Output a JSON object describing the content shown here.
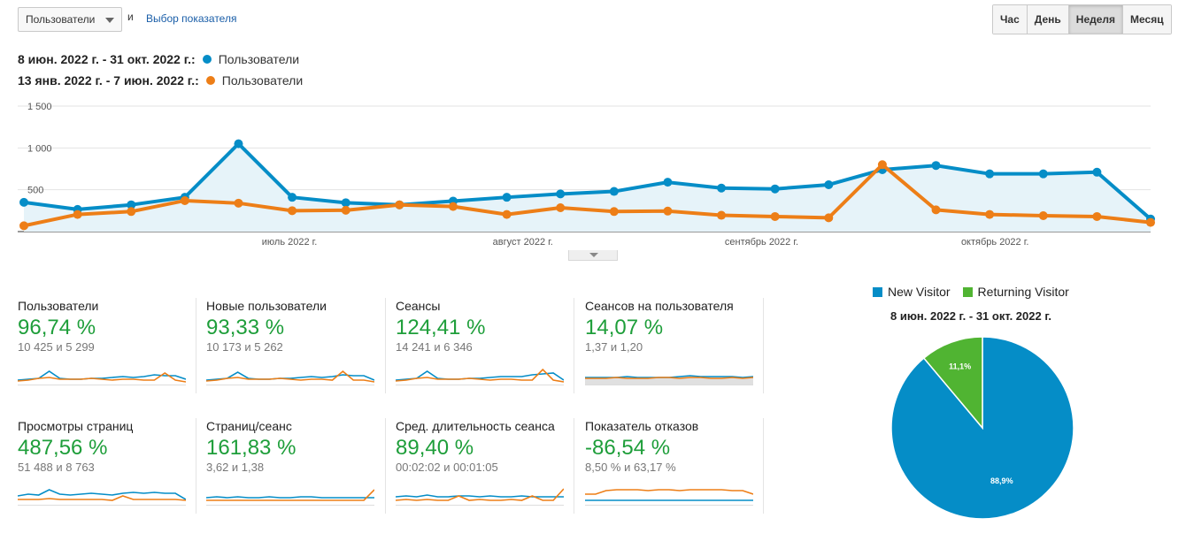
{
  "controls": {
    "metric_select": "Пользователи",
    "and_text": "и",
    "choose_metric": "Выбор показателя",
    "periods": [
      "Час",
      "День",
      "Неделя",
      "Месяц"
    ],
    "active_period": "Неделя"
  },
  "legend": [
    {
      "range": "8 июн. 2022 г. - 31 окт. 2022 г.:",
      "name": "Пользователи",
      "color": "#058dc7"
    },
    {
      "range": "13 янв. 2022 г. - 7 июн. 2022 г.:",
      "name": "Пользователи",
      "color": "#ed7e17"
    }
  ],
  "chart_data": {
    "type": "line",
    "y_ticks": [
      "1 500",
      "1 000",
      "500"
    ],
    "ylim": [
      0,
      1500
    ],
    "x_labels": [
      "июль 2022 г.",
      "август 2022 г.",
      "сентябрь 2022 г.",
      "октябрь 2022 г."
    ],
    "series": [
      {
        "name": "8 июн. 2022 г. - 31 окт. 2022 г.: Пользователи",
        "color": "#058dc7",
        "fill": true,
        "values": [
          350,
          265,
          320,
          410,
          1050,
          410,
          345,
          320,
          365,
          410,
          450,
          480,
          590,
          520,
          510,
          560,
          740,
          790,
          690,
          690,
          710,
          150
        ]
      },
      {
        "name": "13 янв. 2022 г. - 7 июн. 2022 г.: Пользователи",
        "color": "#ed7e17",
        "fill": false,
        "values": [
          70,
          205,
          240,
          370,
          340,
          250,
          255,
          320,
          300,
          205,
          285,
          240,
          245,
          195,
          180,
          165,
          800,
          260,
          205,
          190,
          180,
          110
        ]
      }
    ]
  },
  "tiles": [
    {
      "label": "Пользователи",
      "pct": "96,74 %",
      "vals": "10 425 и 5 299",
      "a": [
        4,
        5,
        6,
        14,
        6,
        5,
        5,
        6,
        6,
        7,
        8,
        7,
        8,
        10,
        9,
        9,
        5
      ],
      "b": [
        3,
        4,
        6,
        7,
        5,
        5,
        5,
        6,
        5,
        4,
        5,
        5,
        4,
        4,
        12,
        4,
        2
      ]
    },
    {
      "label": "Новые пользователи",
      "pct": "93,33 %",
      "vals": "10 173 и 5 262",
      "a": [
        4,
        5,
        6,
        13,
        6,
        5,
        5,
        6,
        6,
        7,
        8,
        7,
        8,
        10,
        9,
        9,
        4
      ],
      "b": [
        3,
        4,
        6,
        7,
        5,
        5,
        5,
        6,
        5,
        4,
        5,
        5,
        4,
        14,
        4,
        4,
        2
      ]
    },
    {
      "label": "Сеансы",
      "pct": "124,41 %",
      "vals": "14 241 и 6 346",
      "a": [
        4,
        5,
        6,
        14,
        6,
        5,
        5,
        6,
        6,
        7,
        8,
        8,
        8,
        10,
        11,
        12,
        4
      ],
      "b": [
        3,
        4,
        6,
        7,
        5,
        5,
        5,
        6,
        5,
        4,
        5,
        5,
        4,
        4,
        16,
        4,
        2
      ]
    },
    {
      "label": "Сеансов на пользователя",
      "pct": "14,07 %",
      "vals": "1,37 и 1,20",
      "fill": true,
      "a": [
        7,
        7,
        7,
        7,
        8,
        7,
        7,
        7,
        7,
        8,
        9,
        8,
        8,
        8,
        8,
        7,
        8
      ],
      "b": [
        6,
        6,
        6,
        7,
        6,
        6,
        6,
        7,
        7,
        6,
        7,
        7,
        6,
        6,
        7,
        6,
        7
      ]
    },
    {
      "label": "Просмотры страниц",
      "pct": "487,56 %",
      "vals": "51 488 и 8 763",
      "a": [
        9,
        11,
        10,
        16,
        11,
        10,
        11,
        12,
        11,
        10,
        12,
        13,
        12,
        13,
        12,
        12,
        5
      ],
      "b": [
        5,
        5,
        5,
        6,
        5,
        5,
        5,
        5,
        5,
        4,
        9,
        5,
        5,
        5,
        5,
        5,
        4
      ]
    },
    {
      "label": "Страниц/сеанс",
      "pct": "161,83 %",
      "vals": "3,62 и 1,38",
      "a": [
        7,
        8,
        7,
        8,
        7,
        7,
        8,
        7,
        7,
        8,
        8,
        7,
        7,
        7,
        7,
        7,
        7
      ],
      "b": [
        4,
        4,
        4,
        4,
        4,
        4,
        4,
        4,
        4,
        4,
        4,
        4,
        4,
        4,
        4,
        4,
        16
      ]
    },
    {
      "label": "Сред. длительность сеанса",
      "pct": "89,40 %",
      "vals": "00:02:02 и 00:01:05",
      "a": [
        8,
        9,
        8,
        10,
        8,
        8,
        9,
        9,
        8,
        9,
        8,
        8,
        9,
        8,
        8,
        8,
        8
      ],
      "b": [
        4,
        5,
        4,
        5,
        4,
        4,
        9,
        4,
        5,
        4,
        4,
        5,
        4,
        9,
        4,
        4,
        17
      ]
    },
    {
      "label": "Показатель отказов",
      "pct": "-86,54 %",
      "vals": "8,50 % и 63,17 %",
      "a": [
        4,
        4,
        4,
        4,
        4,
        4,
        4,
        4,
        4,
        4,
        4,
        4,
        4,
        4,
        4,
        4,
        4
      ],
      "b": [
        11,
        11,
        15,
        16,
        16,
        16,
        15,
        16,
        16,
        15,
        16,
        16,
        16,
        16,
        15,
        15,
        11
      ]
    }
  ],
  "pie": {
    "legend": [
      {
        "name": "New Visitor",
        "color": "#058dc7"
      },
      {
        "name": "Returning Visitor",
        "color": "#50b432"
      }
    ],
    "range": "8 июн. 2022 г. - 31 окт. 2022 г.",
    "chart_data": {
      "type": "pie",
      "labels": [
        "New Visitor",
        "Returning Visitor"
      ],
      "values": [
        88.9,
        11.1
      ],
      "value_labels": [
        "88,9%",
        "11,1%"
      ],
      "colors": [
        "#058dc7",
        "#50b432"
      ]
    }
  }
}
